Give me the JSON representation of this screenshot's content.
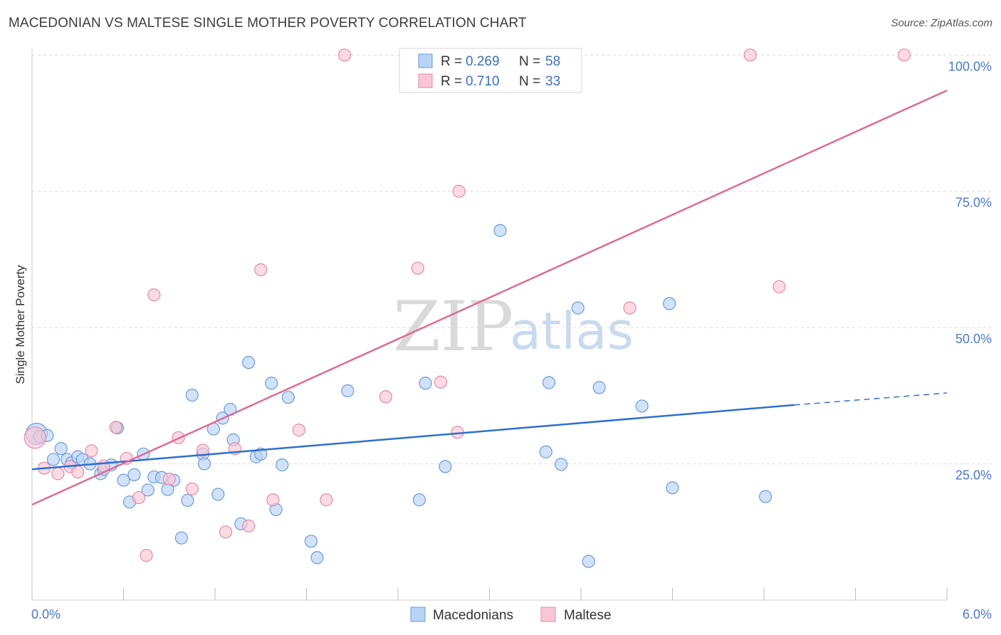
{
  "title": "MACEDONIAN VS MALTESE SINGLE MOTHER POVERTY CORRELATION CHART",
  "source": "Source: ZipAtlas.com",
  "watermark": {
    "zip": "ZIP",
    "atlas": "atlas"
  },
  "colors": {
    "macedonians_fill": "#b8d3f5",
    "macedonians_stroke": "#6b9ad8",
    "macedonians_line": "#2f6fce",
    "maltese_fill": "#f9c6d6",
    "maltese_stroke": "#e58aa8",
    "maltese_line": "#e06a94",
    "grid": "#dddddd",
    "tick_text": "#4a78c8"
  },
  "legend": {
    "rows": [
      {
        "r_label": "R =",
        "r_value": "0.269",
        "n_label": "N =",
        "n_value": "58"
      },
      {
        "r_label": "R =",
        "r_value": "0.710",
        "n_label": "N =",
        "n_value": "33"
      }
    ]
  },
  "bottom_legend": [
    "Macedonians",
    "Maltese"
  ],
  "chart_data": {
    "type": "scatter",
    "ylabel": "Single Mother Poverty",
    "xlabel": "",
    "xlim": [
      0,
      6
    ],
    "ylim": [
      0,
      102
    ],
    "x_tick_labels": [
      "0.0%",
      "6.0%"
    ],
    "y_ticks": [
      25,
      50,
      75,
      100
    ],
    "y_tick_labels": [
      "25.0%",
      "50.0%",
      "75.0%",
      "100.0%"
    ],
    "grid": true,
    "legend_position": "top-center",
    "series": [
      {
        "name": "Macedonians",
        "r": 0.269,
        "n": 58,
        "trend": {
          "x0": 0.0,
          "y0": 24.0,
          "x1": 5.0,
          "y1": 35.8,
          "dash_x1": 6.0,
          "dash_y1": 38.0
        },
        "points": [
          [
            0.03,
            30.5
          ],
          [
            0.05,
            30.0
          ],
          [
            0.1,
            30.2
          ],
          [
            0.14,
            25.8
          ],
          [
            0.19,
            27.8
          ],
          [
            0.23,
            25.8
          ],
          [
            0.26,
            25.2
          ],
          [
            0.3,
            26.3
          ],
          [
            0.33,
            25.8
          ],
          [
            0.38,
            25.0
          ],
          [
            0.45,
            23.2
          ],
          [
            0.47,
            24.0
          ],
          [
            0.52,
            24.8
          ],
          [
            0.56,
            31.6
          ],
          [
            0.6,
            22.0
          ],
          [
            0.64,
            18.0
          ],
          [
            0.67,
            23.0
          ],
          [
            0.73,
            26.8
          ],
          [
            0.76,
            20.2
          ],
          [
            0.8,
            22.6
          ],
          [
            0.85,
            22.5
          ],
          [
            0.89,
            20.3
          ],
          [
            0.93,
            22.0
          ],
          [
            0.98,
            11.4
          ],
          [
            1.02,
            18.3
          ],
          [
            1.05,
            37.6
          ],
          [
            1.12,
            26.8
          ],
          [
            1.13,
            25.0
          ],
          [
            1.19,
            31.4
          ],
          [
            1.22,
            19.4
          ],
          [
            1.25,
            33.4
          ],
          [
            1.3,
            35.0
          ],
          [
            1.32,
            29.4
          ],
          [
            1.37,
            14.0
          ],
          [
            1.42,
            43.6
          ],
          [
            1.47,
            26.3
          ],
          [
            1.5,
            26.8
          ],
          [
            1.57,
            39.8
          ],
          [
            1.6,
            16.6
          ],
          [
            1.64,
            24.8
          ],
          [
            1.68,
            37.2
          ],
          [
            1.83,
            10.8
          ],
          [
            1.87,
            7.8
          ],
          [
            2.07,
            38.4
          ],
          [
            2.54,
            18.4
          ],
          [
            2.58,
            39.8
          ],
          [
            2.71,
            24.5
          ],
          [
            3.07,
            67.8
          ],
          [
            3.37,
            27.2
          ],
          [
            3.39,
            39.9
          ],
          [
            3.47,
            24.9
          ],
          [
            3.58,
            53.6
          ],
          [
            3.65,
            7.1
          ],
          [
            3.72,
            39.0
          ],
          [
            4.0,
            35.6
          ],
          [
            4.18,
            54.4
          ],
          [
            4.2,
            20.6
          ],
          [
            4.81,
            19.0
          ]
        ]
      },
      {
        "name": "Maltese",
        "r": 0.71,
        "n": 33,
        "trend": {
          "x0": 0.0,
          "y0": 17.5,
          "x1": 6.0,
          "y1": 93.5
        },
        "points": [
          [
            0.02,
            29.8
          ],
          [
            0.08,
            24.2
          ],
          [
            0.17,
            23.2
          ],
          [
            0.25,
            24.5
          ],
          [
            0.3,
            23.5
          ],
          [
            0.39,
            27.4
          ],
          [
            0.47,
            24.6
          ],
          [
            0.55,
            31.7
          ],
          [
            0.62,
            26.0
          ],
          [
            0.7,
            18.8
          ],
          [
            0.75,
            8.2
          ],
          [
            0.8,
            56.0
          ],
          [
            0.9,
            22.2
          ],
          [
            0.96,
            29.8
          ],
          [
            1.05,
            20.4
          ],
          [
            1.12,
            27.5
          ],
          [
            1.27,
            12.5
          ],
          [
            1.33,
            27.8
          ],
          [
            1.42,
            13.6
          ],
          [
            1.5,
            60.6
          ],
          [
            1.58,
            18.4
          ],
          [
            1.75,
            31.2
          ],
          [
            1.93,
            18.4
          ],
          [
            2.05,
            100.0
          ],
          [
            2.32,
            37.3
          ],
          [
            2.53,
            60.9
          ],
          [
            2.68,
            40.0
          ],
          [
            2.79,
            30.8
          ],
          [
            2.8,
            75.0
          ],
          [
            3.92,
            53.6
          ],
          [
            4.71,
            100.0
          ],
          [
            4.9,
            57.5
          ],
          [
            5.72,
            100.0
          ]
        ]
      }
    ]
  }
}
